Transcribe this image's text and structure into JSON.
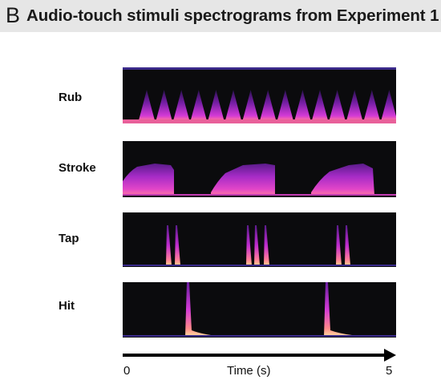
{
  "header": {
    "panel_letter": "B",
    "title": "Audio-touch stimuli spectrograms from Experiment 1"
  },
  "spectrograms": [
    {
      "label": "Rub"
    },
    {
      "label": "Stroke"
    },
    {
      "label": "Tap"
    },
    {
      "label": "Hit"
    }
  ],
  "axis": {
    "label": "Time (s)",
    "tick_start": "0",
    "tick_end": "5"
  },
  "colors": {
    "background": "#0b0b0d",
    "low": "#3a1a6e",
    "mid": "#c02cd0",
    "high": "#ff5a9a",
    "peak": "#ffd08a"
  }
}
